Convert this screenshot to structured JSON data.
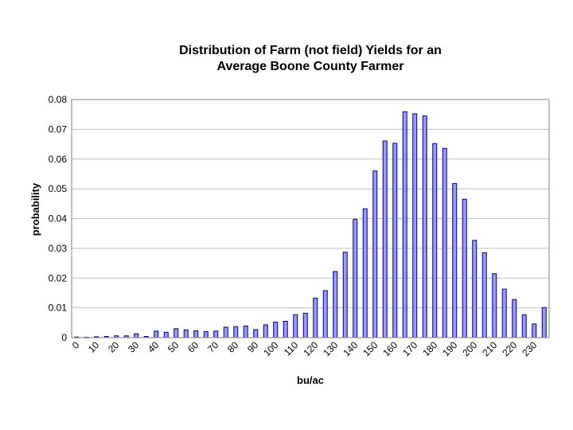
{
  "chart_data": {
    "type": "bar",
    "title": "Distribution of Farm (not field) Yields for an Average Boone County Farmer",
    "title_lines": [
      "Distribution of Farm (not field) Yields for an",
      "Average Boone County Farmer"
    ],
    "xlabel": "bu/ac",
    "ylabel": "probability",
    "ylim": [
      0,
      0.08
    ],
    "yticks": [
      "0",
      "0.01",
      "0.02",
      "0.03",
      "0.04",
      "0.05",
      "0.06",
      "0.07",
      "0.08"
    ],
    "xtick_labels": [
      "0",
      "10",
      "20",
      "30",
      "40",
      "50",
      "60",
      "70",
      "80",
      "90",
      "100",
      "110",
      "120",
      "130",
      "140",
      "150",
      "160",
      "170",
      "180",
      "190",
      "200",
      "210",
      "220",
      "230"
    ],
    "categories": [
      0,
      5,
      10,
      15,
      20,
      25,
      30,
      35,
      40,
      45,
      50,
      55,
      60,
      65,
      70,
      75,
      80,
      85,
      90,
      95,
      100,
      105,
      110,
      115,
      120,
      125,
      130,
      135,
      140,
      145,
      150,
      155,
      160,
      165,
      170,
      175,
      180,
      185,
      190,
      195,
      200,
      205,
      210,
      215,
      220,
      225,
      230,
      235
    ],
    "values": [
      0.0002,
      0.0001,
      0.0003,
      0.0004,
      0.0006,
      0.0006,
      0.0013,
      0.0004,
      0.0022,
      0.0018,
      0.003,
      0.0026,
      0.0023,
      0.002,
      0.0022,
      0.0035,
      0.0037,
      0.0039,
      0.0027,
      0.0043,
      0.0052,
      0.0055,
      0.0077,
      0.0082,
      0.0133,
      0.0158,
      0.0222,
      0.0287,
      0.0397,
      0.0433,
      0.056,
      0.0661,
      0.0653,
      0.0759,
      0.0752,
      0.0745,
      0.0652,
      0.0636,
      0.0518,
      0.0465,
      0.0327,
      0.0285,
      0.0215,
      0.0163,
      0.0128,
      0.0077,
      0.0046,
      0.0101
    ],
    "grid": true,
    "bar_color": "#9999ff",
    "bar_edge_color": "#000080",
    "plot_border_color": "#808080",
    "grid_color": "#c0c0c0"
  }
}
